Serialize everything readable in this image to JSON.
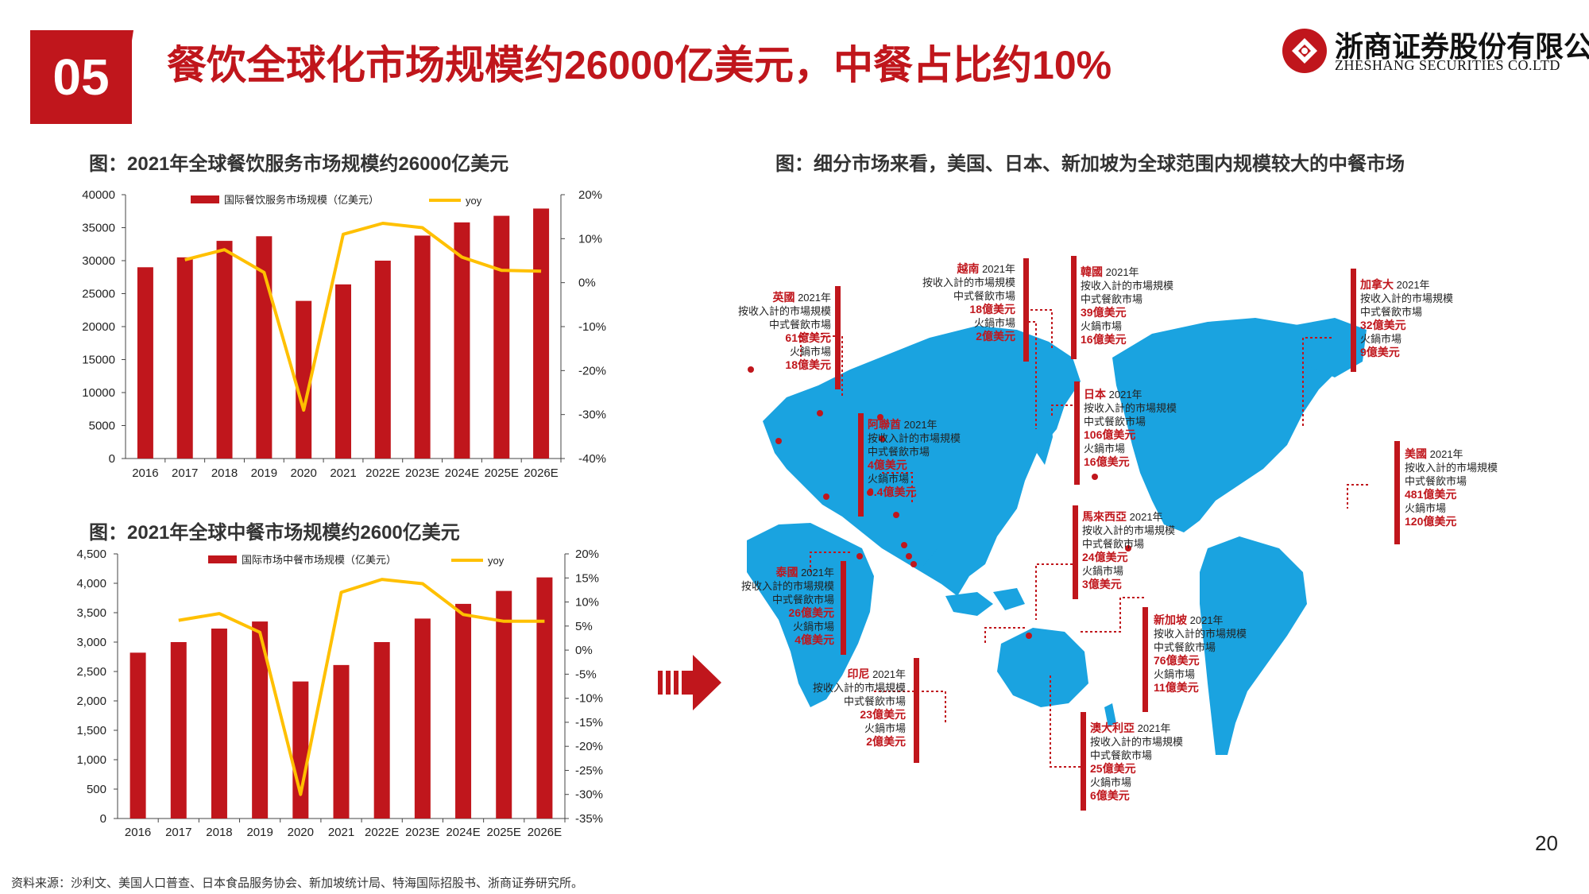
{
  "header": {
    "section_number": "05",
    "title": "餐饮全球化市场规模约26000亿美元，中餐占比约10%",
    "company_cn": "浙商证券股份有限公司",
    "company_en": "ZHESHANG SECURITIES CO.LTD"
  },
  "colors": {
    "accent": "#c0161c",
    "bar": "#c0161c",
    "line": "#ffc000",
    "map": "#1aa3e0"
  },
  "chart_data": [
    {
      "type": "bar",
      "title": "图：2021年全球餐饮服务市场规模约26000亿美元",
      "categories": [
        "2016",
        "2017",
        "2018",
        "2019",
        "2020",
        "2021",
        "2022E",
        "2023E",
        "2024E",
        "2025E",
        "2026E"
      ],
      "series": [
        {
          "name": "国际餐饮服务市场规模（亿美元）",
          "type": "bar",
          "axis": "left",
          "values": [
            29000,
            30500,
            33000,
            33700,
            23900,
            26400,
            30000,
            33800,
            35800,
            36800,
            37900
          ]
        },
        {
          "name": "yoy",
          "type": "line",
          "axis": "right",
          "values": [
            null,
            5.2,
            7.5,
            2.3,
            -29.0,
            11.0,
            13.5,
            12.5,
            5.8,
            2.8,
            2.6
          ]
        }
      ],
      "ylim": [
        0,
        40000
      ],
      "yticks": [
        "40000",
        "35000",
        "30000",
        "25000",
        "20000",
        "15000",
        "10000",
        "5000",
        "0"
      ],
      "y2lim": [
        -40,
        20
      ],
      "y2ticks": [
        "20%",
        "10%",
        "0%",
        "-10%",
        "-20%",
        "-30%",
        "-40%"
      ],
      "legend": "top"
    },
    {
      "type": "bar",
      "title": "图：2021年全球中餐市场规模约2600亿美元",
      "categories": [
        "2016",
        "2017",
        "2018",
        "2019",
        "2020",
        "2021",
        "2022E",
        "2023E",
        "2024E",
        "2025E",
        "2026E"
      ],
      "series": [
        {
          "name": "国际市场中餐市场规模（亿美元）",
          "type": "bar",
          "axis": "left",
          "values": [
            2820,
            3000,
            3230,
            3350,
            2330,
            2610,
            3000,
            3400,
            3650,
            3870,
            4100
          ]
        },
        {
          "name": "yoy",
          "type": "line",
          "axis": "right",
          "values": [
            null,
            6.2,
            7.6,
            3.7,
            -30.0,
            12.0,
            14.7,
            13.8,
            7.4,
            6.0,
            6.0
          ]
        }
      ],
      "ylim": [
        0,
        4500
      ],
      "yticks": [
        "4,500",
        "4,000",
        "3,500",
        "3,000",
        "2,500",
        "2,000",
        "1,500",
        "1,000",
        "500",
        "0"
      ],
      "y2lim": [
        -35,
        20
      ],
      "y2ticks": [
        "20%",
        "15%",
        "10%",
        "5%",
        "0%",
        "-5%",
        "-10%",
        "-15%",
        "-20%",
        "-25%",
        "-30%",
        "-35%"
      ],
      "legend": "top"
    }
  ],
  "map": {
    "title": "图：细分市场来看，美国、日本、新加坡为全球范围内规模较大的中餐市场",
    "callouts": [
      {
        "id": "uk",
        "name": "英國",
        "year": "2021年",
        "l1": "按收入計的市場規模",
        "l2": "中式餐飲市場",
        "v1": "61億美元",
        "l3": "火鍋市場",
        "v2": "18億美元"
      },
      {
        "id": "vn",
        "name": "越南",
        "year": "2021年",
        "l1": "按收入計的市場規模",
        "l2": "中式餐飲市場",
        "v1": "18億美元",
        "l3": "火鍋市場",
        "v2": "2億美元"
      },
      {
        "id": "kr",
        "name": "韓國",
        "year": "2021年",
        "l1": "按收入計的市場規模",
        "l2": "中式餐飲市場",
        "v1": "39億美元",
        "l3": "火鍋市場",
        "v2": "16億美元"
      },
      {
        "id": "ca",
        "name": "加拿大",
        "year": "2021年",
        "l1": "按收入計的市場規模",
        "l2": "中式餐飲市場",
        "v1": "32億美元",
        "l3": "火鍋市場",
        "v2": "9億美元"
      },
      {
        "id": "ae",
        "name": "阿聯酋",
        "year": "2021年",
        "l1": "按收入計的市場規模",
        "l2": "中式餐飲市場",
        "v1": "4億美元",
        "l3": "火鍋市場",
        "v2": "0.4億美元"
      },
      {
        "id": "jp",
        "name": "日本",
        "year": "2021年",
        "l1": "按收入計的市場規模",
        "l2": "中式餐飲市場",
        "v1": "106億美元",
        "l3": "火鍋市場",
        "v2": "16億美元"
      },
      {
        "id": "us",
        "name": "美國",
        "year": "2021年",
        "l1": "按收入計的市場規模",
        "l2": "中式餐飲市場",
        "v1": "481億美元",
        "l3": "火鍋市場",
        "v2": "120億美元"
      },
      {
        "id": "my",
        "name": "馬來西亞",
        "year": "2021年",
        "l1": "按收入計的市場規模",
        "l2": "中式餐飲市場",
        "v1": "24億美元",
        "l3": "火鍋市場",
        "v2": "3億美元"
      },
      {
        "id": "th",
        "name": "泰國",
        "year": "2021年",
        "l1": "按收入計的市場規模",
        "l2": "中式餐飲市場",
        "v1": "26億美元",
        "l3": "火鍋市場",
        "v2": "4億美元"
      },
      {
        "id": "sg",
        "name": "新加坡",
        "year": "2021年",
        "l1": "按收入計的市場規模",
        "l2": "中式餐飲市場",
        "v1": "76億美元",
        "l3": "火鍋市場",
        "v2": "11億美元"
      },
      {
        "id": "id",
        "name": "印尼",
        "year": "2021年",
        "l1": "按收入計的市場規模",
        "l2": "中式餐飲市場",
        "v1": "23億美元",
        "l3": "火鍋市場",
        "v2": "2億美元"
      },
      {
        "id": "au",
        "name": "澳大利亞",
        "year": "2021年",
        "l1": "按收入計的市場規模",
        "l2": "中式餐飲市場",
        "v1": "25億美元",
        "l3": "火鍋市場",
        "v2": "6億美元"
      }
    ]
  },
  "footer": {
    "page_number": "20",
    "source": "资料来源：沙利文、美国人口普查、日本食品服务协会、新加坡统计局、特海国际招股书、浙商证券研究所。"
  }
}
